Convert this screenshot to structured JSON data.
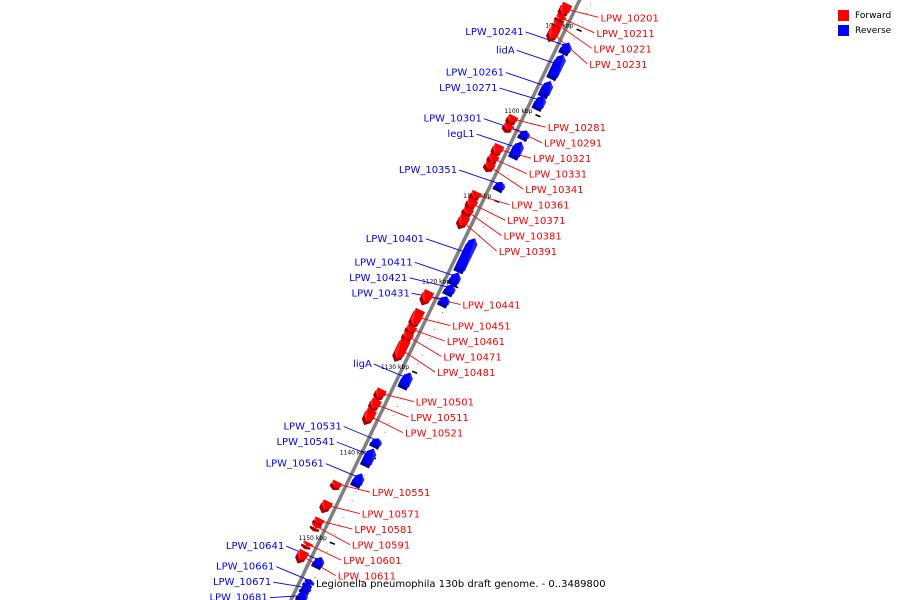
{
  "genome": {
    "caption": "Legionella pneumophila 130b draft genome. - 0..3489800",
    "forward_color": "#ff0000",
    "reverse_color": "#0000ff",
    "axis_color": "#808080"
  },
  "legend": {
    "items": [
      {
        "label": "Forward",
        "color": "#ff0000"
      },
      {
        "label": "Reverse",
        "color": "#0000ff"
      }
    ]
  },
  "ticks": [
    {
      "label": "1090 kbp",
      "kbp": 1090
    },
    {
      "label": "1100 kbp",
      "kbp": 1100
    },
    {
      "label": "1110 kbp",
      "kbp": 1110
    },
    {
      "label": "1120 kbp",
      "kbp": 1120
    },
    {
      "label": "1130 kbp",
      "kbp": 1130
    },
    {
      "label": "1140 kbp",
      "kbp": 1140
    },
    {
      "label": "1150 kbp",
      "kbp": 1150
    }
  ],
  "reverse_genes": [
    {
      "name": "LPW_10241",
      "start": 1091.6,
      "end": 1092.6
    },
    {
      "name": "lidA",
      "start": 1093.0,
      "end": 1095.5
    },
    {
      "name": "LPW_10261",
      "start": 1096.1,
      "end": 1097.6
    },
    {
      "name": "LPW_10271",
      "start": 1097.8,
      "end": 1099.1
    },
    {
      "name": "LPW_10301",
      "start": 1101.9,
      "end": 1102.6
    },
    {
      "name": "legL1",
      "start": 1103.2,
      "end": 1104.8
    },
    {
      "name": "LPW_10351",
      "start": 1107.9,
      "end": 1108.6
    },
    {
      "name": "LPW_10401",
      "start": 1114.5,
      "end": 1118.1
    },
    {
      "name": "LPW_10411",
      "start": 1118.5,
      "end": 1119.6
    },
    {
      "name": "LPW_10421",
      "start": 1119.9,
      "end": 1120.8
    },
    {
      "name": "LPW_10431",
      "start": 1121.3,
      "end": 1122.1
    },
    {
      "name": "ligA",
      "start": 1130.2,
      "end": 1131.7
    },
    {
      "name": "LPW_10531",
      "start": 1137.9,
      "end": 1138.6
    },
    {
      "name": "LPW_10541",
      "start": 1139.1,
      "end": 1140.8
    },
    {
      "name": "LPW_10561",
      "start": 1142.0,
      "end": 1143.2
    },
    {
      "name": "LPW_10641",
      "start": 1151.8,
      "end": 1152.7
    },
    {
      "name": "LPW_10661",
      "start": 1154.4,
      "end": 1154.9
    },
    {
      "name": "LPW_10671",
      "start": 1155.1,
      "end": 1155.7
    },
    {
      "name": "LPW_10681",
      "start": 1155.9,
      "end": 1156.6
    }
  ],
  "forward_genes": [
    {
      "name": "LPW_10201",
      "start": 1088.0,
      "end": 1089.3
    },
    {
      "name": "LPW_10211",
      "start": 1089.4,
      "end": 1089.9
    },
    {
      "name": "LPW_10221",
      "start": 1090.1,
      "end": 1090.6
    },
    {
      "name": "LPW_10231",
      "start": 1090.7,
      "end": 1092.1
    },
    {
      "name": "LPW_10281",
      "start": 1101.1,
      "end": 1101.9
    },
    {
      "name": "LPW_10291",
      "start": 1102.1,
      "end": 1102.7
    },
    {
      "name": "LPW_10321",
      "start": 1104.5,
      "end": 1105.6
    },
    {
      "name": "LPW_10331",
      "start": 1105.7,
      "end": 1106.5
    },
    {
      "name": "LPW_10341",
      "start": 1106.6,
      "end": 1107.3
    },
    {
      "name": "LPW_10361",
      "start": 1110.0,
      "end": 1110.7
    },
    {
      "name": "LPW_10371",
      "start": 1110.9,
      "end": 1111.8
    },
    {
      "name": "LPW_10381",
      "start": 1111.9,
      "end": 1112.6
    },
    {
      "name": "LPW_10391",
      "start": 1112.8,
      "end": 1114.0
    },
    {
      "name": "LPW_10441",
      "start": 1121.6,
      "end": 1122.9
    },
    {
      "name": "LPW_10451",
      "start": 1123.8,
      "end": 1125.6
    },
    {
      "name": "LPW_10461",
      "start": 1125.7,
      "end": 1126.4
    },
    {
      "name": "LPW_10471",
      "start": 1126.5,
      "end": 1127.2
    },
    {
      "name": "LPW_10481",
      "start": 1127.3,
      "end": 1129.5
    },
    {
      "name": "LPW_10501",
      "start": 1133.1,
      "end": 1134.1
    },
    {
      "name": "LPW_10511",
      "start": 1134.3,
      "end": 1135.4
    },
    {
      "name": "LPW_10521",
      "start": 1135.5,
      "end": 1136.9
    },
    {
      "name": "LPW_10551",
      "start": 1143.9,
      "end": 1144.5
    },
    {
      "name": "LPW_10571",
      "start": 1146.2,
      "end": 1147.2
    },
    {
      "name": "LPW_10581",
      "start": 1148.2,
      "end": 1148.8
    },
    {
      "name": "LPW_10591",
      "start": 1148.9,
      "end": 1149.3
    },
    {
      "name": "LPW_10601",
      "start": 1151.0,
      "end": 1151.4
    },
    {
      "name": "LPW_10611",
      "start": 1152.0,
      "end": 1153.1
    }
  ]
}
